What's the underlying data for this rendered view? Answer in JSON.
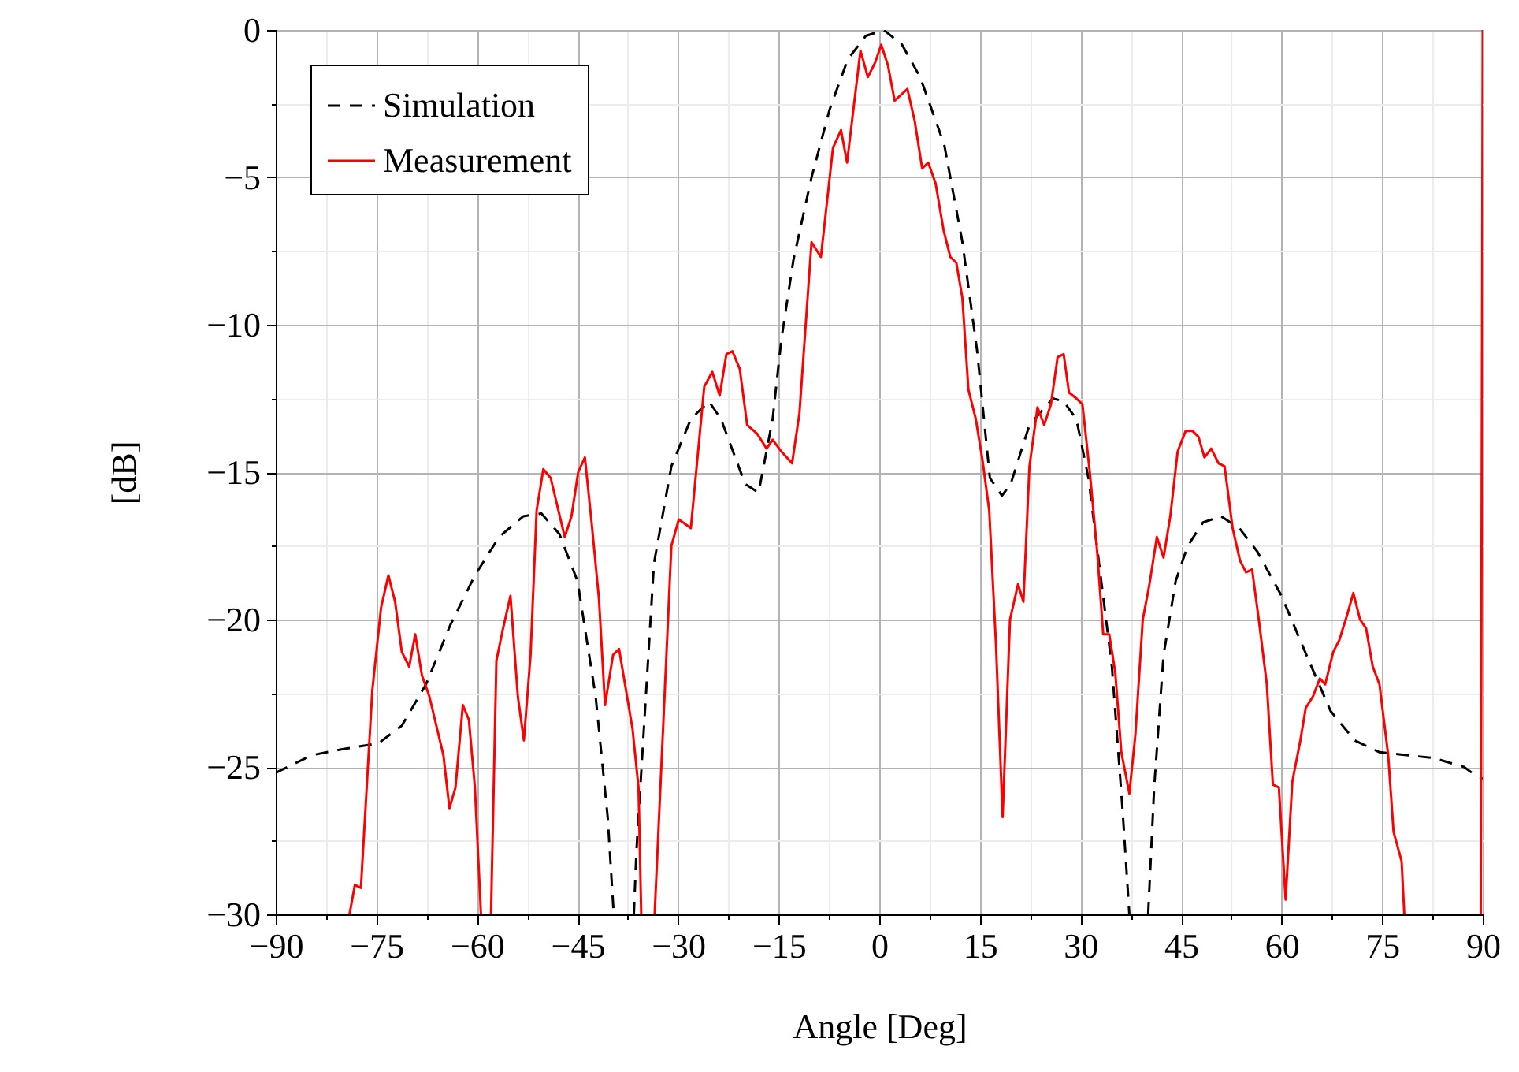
{
  "chart_data": {
    "type": "line",
    "xlabel": "Angle [Deg]",
    "ylabel": "[dB]",
    "xlim": [
      -90,
      90
    ],
    "ylim": [
      -30,
      0
    ],
    "xticks": [
      {
        "value": -90,
        "label": "−90"
      },
      {
        "value": -82.5,
        "label": null
      },
      {
        "value": -75,
        "label": "−75"
      },
      {
        "value": -67.5,
        "label": null
      },
      {
        "value": -60,
        "label": "−60"
      },
      {
        "value": -52.5,
        "label": null
      },
      {
        "value": -45,
        "label": "−45"
      },
      {
        "value": -37.5,
        "label": null
      },
      {
        "value": -30,
        "label": "−30"
      },
      {
        "value": -22.5,
        "label": null
      },
      {
        "value": -15,
        "label": "−15"
      },
      {
        "value": -7.5,
        "label": null
      },
      0,
      {
        "value": 7.5,
        "label": null
      },
      15,
      {
        "value": 22.5,
        "label": null
      },
      30,
      {
        "value": 37.5,
        "label": null
      },
      45,
      {
        "value": 52.5,
        "label": null
      },
      60,
      {
        "value": 67.5,
        "label": null
      },
      75,
      {
        "value": 82.5,
        "label": null
      },
      90
    ],
    "yticks": [
      {
        "value": -30,
        "label": "−30"
      },
      {
        "value": -27.5,
        "label": null
      },
      {
        "value": -25,
        "label": "−25"
      },
      {
        "value": -22.5,
        "label": null
      },
      {
        "value": -20,
        "label": "−20"
      },
      {
        "value": -17.5,
        "label": null
      },
      {
        "value": -15,
        "label": "−15"
      },
      {
        "value": -12.5,
        "label": null
      },
      {
        "value": -10,
        "label": "−10"
      },
      {
        "value": -7.5,
        "label": null
      },
      {
        "value": -5,
        "label": "−5"
      },
      {
        "value": -2.5,
        "label": null
      },
      0
    ],
    "grid": true,
    "legend": "top left",
    "marker": "none",
    "series": [
      {
        "name": "Simulation",
        "color": "#000000",
        "line_style": "dashed",
        "x": [
          -90,
          -84.6,
          -80.1,
          -74.7,
          -71.2,
          -67.6,
          -64,
          -60.3,
          -56.7,
          -53.1,
          -50.4,
          -47.7,
          -45,
          -42.3,
          -40.5,
          -39.6,
          -38,
          -36.6,
          -36.2,
          -35.1,
          -33.6,
          -31,
          -28.1,
          -25.4,
          -23.6,
          -20,
          -18,
          -15.9,
          -14.6,
          -12.8,
          -10.1,
          -7.4,
          -4.7,
          -2,
          0.7,
          3.4,
          6.1,
          9.7,
          12.4,
          14.6,
          16.5,
          18.3,
          19.6,
          22.4,
          25.9,
          27.5,
          29.4,
          31.2,
          33,
          34.7,
          36.3,
          37.3,
          38.7,
          40.1,
          41,
          42.4,
          44.2,
          46,
          48.3,
          51,
          53.7,
          56.4,
          60,
          63.7,
          67.3,
          70.9,
          74.6,
          82.7,
          87.2,
          89,
          90
        ],
        "values": [
          -25.2,
          -24.6,
          -24.4,
          -24.2,
          -23.6,
          -22.2,
          -20.2,
          -18.5,
          -17.2,
          -16.5,
          -16.4,
          -17.1,
          -18.7,
          -22.6,
          -26.7,
          -30,
          null,
          -30,
          -27.8,
          -23.7,
          -18.1,
          -14.8,
          -13.2,
          -12.6,
          -13.2,
          -15.4,
          -15.7,
          -13.2,
          -10.5,
          -7.8,
          -5,
          -2.7,
          -1,
          -0.2,
          0,
          -0.5,
          -1.6,
          -3.9,
          -7.2,
          -10.9,
          -15.2,
          -15.8,
          -15.4,
          -13.4,
          -12.5,
          -12.6,
          -13.2,
          -15.2,
          -18.5,
          -21.6,
          -26.5,
          -30,
          null,
          -30,
          -25.7,
          -21.2,
          -18.7,
          -17.5,
          -16.7,
          -16.5,
          -16.9,
          -17.7,
          -19.2,
          -21.2,
          -23.1,
          -24.1,
          -24.5,
          -24.7,
          -25,
          -25.3,
          -25.4
        ]
      },
      {
        "name": "Measurement",
        "color": "#ff0000",
        "line_style": "solid",
        "x": [
          -79,
          -78.2,
          -77.3,
          -75.6,
          -74.3,
          -73.2,
          -72.2,
          -71.2,
          -70.1,
          -69.2,
          -68.2,
          -67.1,
          -65,
          -64.1,
          -63.2,
          -62.1,
          -61.2,
          -60.3,
          -59.4,
          -58.6,
          -57.9,
          -57.1,
          -56.2,
          -55,
          -53.9,
          -53,
          -52,
          -51.1,
          -50.1,
          -49,
          -46.9,
          -45.9,
          -44.9,
          -43.9,
          -42.9,
          -41.8,
          -40.9,
          -39.7,
          -38.8,
          -36.8,
          -35.9,
          -35.5,
          -34.5,
          -33.5,
          -31,
          -29.9,
          -28.1,
          -26.1,
          -24.9,
          -23.8,
          -22.8,
          -21.9,
          -20.8,
          -19.7,
          -18.2,
          -16.8,
          -15.9,
          -14.6,
          -13,
          -11.9,
          -10.1,
          -8.7,
          -6.9,
          -5.7,
          -4.8,
          -2.8,
          -1.7,
          -0.6,
          0.3,
          1.3,
          2.3,
          4.2,
          5.3,
          6.4,
          7.3,
          8.4,
          9.6,
          10.6,
          11.5,
          12.4,
          13.3,
          14.4,
          15.4,
          16.4,
          17.4,
          18.4,
          19.5,
          20.7,
          21.5,
          22.4,
          23.6,
          24.6,
          25.6,
          26.6,
          27.5,
          28.3,
          29.4,
          30.3,
          31.4,
          32.5,
          33.4,
          34.3,
          35.2,
          36.1,
          37.3,
          38.2,
          39.3,
          40.3,
          41.4,
          42.4,
          43.4,
          44.5,
          45.7,
          46.7,
          47.6,
          48.5,
          49.5,
          50.6,
          51.5,
          52.7,
          53.8,
          54.7,
          55.6,
          56.6,
          57.8,
          58.7,
          59.6,
          60.6,
          61.6,
          62.8,
          63.6,
          64.7,
          65.7,
          66.5,
          67.7,
          68.6,
          69.7,
          70.7,
          71.7,
          72.6,
          73.6,
          74.6,
          75.9,
          76.7,
          77.9,
          78.3,
          84,
          89.7,
          90
        ],
        "values": [
          -30,
          -29,
          -29.1,
          -22.4,
          -19.6,
          -18.5,
          -19.4,
          -21.1,
          -21.6,
          -20.5,
          -21.9,
          -22.6,
          -24.6,
          -26.4,
          -25.7,
          -22.9,
          -23.4,
          -25.7,
          -30,
          null,
          -30,
          -21.4,
          -20.4,
          -19.2,
          -22.6,
          -24.1,
          -21.2,
          -16.3,
          -14.9,
          -15.2,
          -17.2,
          -16.5,
          -15,
          -14.5,
          -16.7,
          -19.3,
          -22.9,
          -21.2,
          -21,
          -23.7,
          -25.7,
          -30,
          null,
          -30,
          -17.5,
          -16.6,
          -16.9,
          -12.1,
          -11.6,
          -12.4,
          -11,
          -10.9,
          -11.5,
          -13.4,
          -13.7,
          -14.2,
          -13.9,
          -14.3,
          -14.7,
          -13,
          -7.2,
          -7.7,
          -4,
          -3.4,
          -4.5,
          -0.7,
          -1.6,
          -1.1,
          -0.5,
          -1.2,
          -2.4,
          -2,
          -3.1,
          -4.7,
          -4.5,
          -5.2,
          -6.8,
          -7.7,
          -7.9,
          -9.1,
          -12.2,
          -13.2,
          -14.6,
          -16.3,
          -20.8,
          -26.7,
          -20,
          -18.8,
          -19.4,
          -14.8,
          -12.8,
          -13.4,
          -12.7,
          -11.1,
          -11,
          -12.3,
          -12.5,
          -12.7,
          -15,
          -17.7,
          -20.5,
          -20.5,
          -21.8,
          -24.5,
          -25.9,
          -23.9,
          -20,
          -18.8,
          -17.2,
          -17.9,
          -16.5,
          -14.3,
          -13.6,
          -13.6,
          -13.8,
          -14.5,
          -14.2,
          -14.7,
          -14.8,
          -16.9,
          -18,
          -18.4,
          -18.3,
          -20,
          -22.2,
          -25.6,
          -25.7,
          -29.5,
          -25.5,
          -24.1,
          -23,
          -22.6,
          -22,
          -22.2,
          -21.1,
          -20.7,
          -19.9,
          -19.1,
          -20,
          -20.3,
          -21.6,
          -22.2,
          -24.6,
          -27.2,
          -28.2,
          -30,
          null,
          -30,
          0
        ]
      }
    ]
  }
}
